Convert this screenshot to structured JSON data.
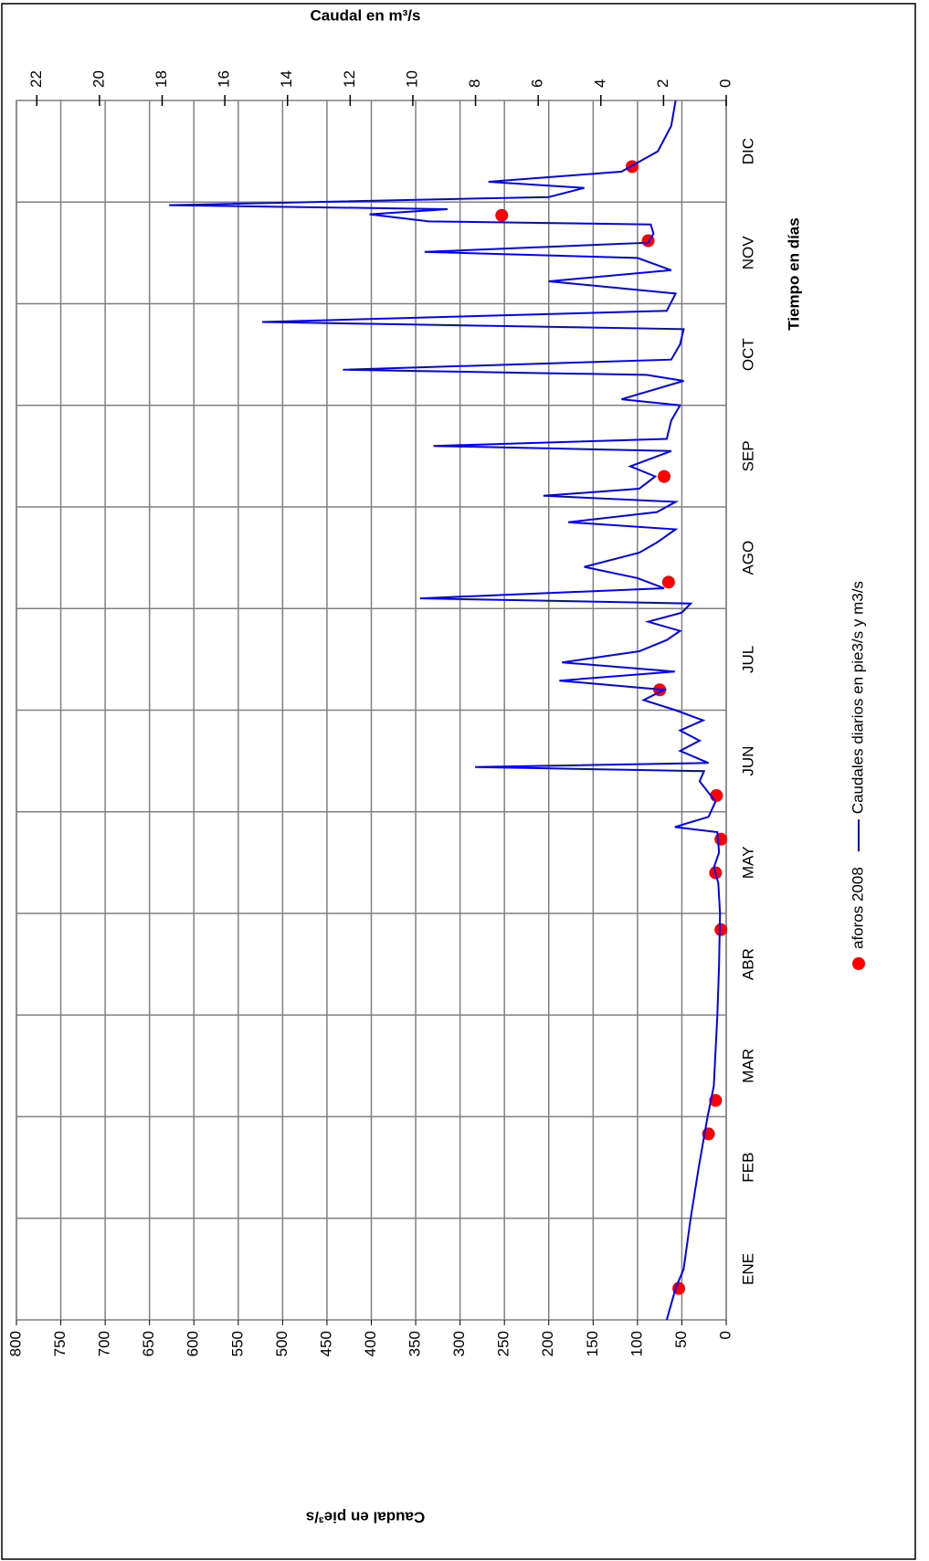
{
  "chart_data": {
    "type": "line",
    "y_axis_label": "Caudal en pie³/s",
    "y2_axis_label": "Caudal en m³/s",
    "x_axis_label": "Tiempo en días",
    "categories": [
      "ENE",
      "FEB",
      "MAR",
      "ABR",
      "MAY",
      "JUN",
      "JUL",
      "AGO",
      "SEP",
      "OCT",
      "NOV",
      "DIC"
    ],
    "xlim": [
      0,
      12
    ],
    "ylim": [
      0,
      800
    ],
    "yticks": [
      0,
      50,
      100,
      150,
      200,
      250,
      300,
      350,
      400,
      450,
      500,
      550,
      600,
      650,
      700,
      750,
      800
    ],
    "y2lim": [
      0,
      22.65
    ],
    "y2ticks": [
      0,
      2,
      4,
      6,
      8,
      10,
      12,
      14,
      16,
      18,
      20,
      22
    ],
    "grid": true,
    "legend": "bottom",
    "series": [
      {
        "name": "aforos 2008",
        "type": "scatter",
        "color": "#ff0000",
        "x": [
          0.31,
          1.83,
          2.16,
          3.84,
          4.4,
          4.73,
          5.16,
          6.2,
          7.26,
          8.3,
          10.62,
          10.87,
          11.35
        ],
        "values": [
          53.5,
          20,
          12,
          6,
          12,
          6,
          11,
          75,
          65,
          70,
          88,
          253,
          106
        ]
      },
      {
        "name": "Caudales diarios en pie3/s y m3/s",
        "type": "line",
        "color": "#0000ff",
        "x": [
          0,
          0.31,
          0.5,
          1,
          1.5,
          2,
          2.3,
          3,
          3.5,
          4,
          4.3,
          4.45,
          4.6,
          4.8,
          4.85,
          4.95,
          5.1,
          5.3,
          5.4,
          5.44,
          5.48,
          5.6,
          5.7,
          5.8,
          5.9,
          6.0,
          6.1,
          6.2,
          6.29,
          6.38,
          6.47,
          6.58,
          6.69,
          6.78,
          6.87,
          6.96,
          7.05,
          7.1,
          7.2,
          7.3,
          7.41,
          7.55,
          7.65,
          7.78,
          7.85,
          7.95,
          8.05,
          8.11,
          8.18,
          8.3,
          8.4,
          8.55,
          8.6,
          8.67,
          8.85,
          9.0,
          9.06,
          9.24,
          9.3,
          9.35,
          9.45,
          9.6,
          9.75,
          9.82,
          9.93,
          10.1,
          10.22,
          10.33,
          10.45,
          10.51,
          10.6,
          10.69,
          10.78,
          10.81,
          10.88,
          10.93,
          10.97,
          11.05,
          11.14,
          11.2,
          11.3,
          11.5,
          11.75,
          12
        ],
        "values": [
          67,
          57,
          48,
          40,
          31,
          21,
          14,
          10,
          8,
          7,
          9,
          14,
          8,
          10,
          58,
          20,
          12,
          30,
          25,
          283,
          20,
          52,
          30,
          52,
          26,
          57,
          93,
          70,
          188,
          58,
          185,
          98,
          67,
          52,
          88,
          50,
          40,
          345,
          70,
          100,
          160,
          98,
          78,
          57,
          178,
          78,
          57,
          206,
          98,
          80,
          108,
          62,
          330,
          67,
          62,
          52,
          118,
          48,
          90,
          432,
          62,
          52,
          48,
          523,
          67,
          57,
          200,
          62,
          100,
          340,
          88,
          82,
          85,
          335,
          402,
          314,
          628,
          200,
          160,
          268,
          118,
          77,
          62,
          57
        ]
      }
    ]
  }
}
